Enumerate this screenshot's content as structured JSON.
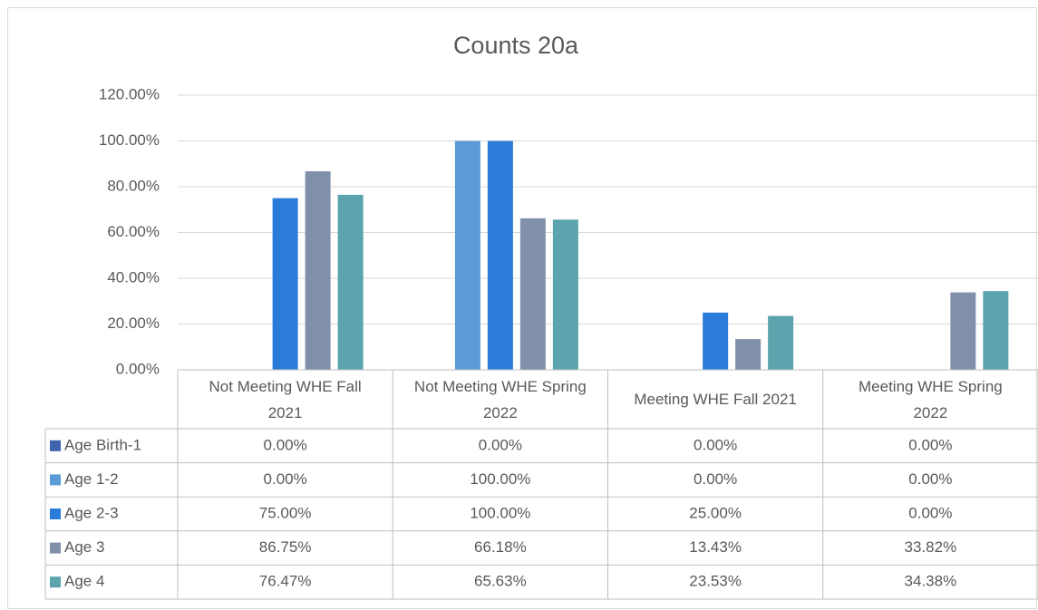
{
  "chart_data": {
    "type": "bar",
    "title": "Counts 20a",
    "categories": [
      "Not Meeting WHE Fall 2021",
      "Not Meeting WHE Spring 2022",
      "Meeting WHE Fall 2021",
      "Meeting WHE Spring 2022"
    ],
    "series": [
      {
        "name": "Age Birth-1",
        "color": "#4063ad",
        "values": [
          0,
          0,
          0,
          0
        ],
        "value_labels": [
          "0.00%",
          "0.00%",
          "0.00%",
          "0.00%"
        ]
      },
      {
        "name": "Age 1-2",
        "color": "#5b9bd5",
        "values": [
          0,
          100,
          0,
          0
        ],
        "value_labels": [
          "0.00%",
          "100.00%",
          "0.00%",
          "0.00%"
        ]
      },
      {
        "name": "Age 2-3",
        "color": "#2b7cd9",
        "values": [
          75,
          100,
          25,
          0
        ],
        "value_labels": [
          "75.00%",
          "100.00%",
          "25.00%",
          "0.00%"
        ]
      },
      {
        "name": "Age 3",
        "color": "#8090aa",
        "values": [
          86.75,
          66.18,
          13.43,
          33.82
        ],
        "value_labels": [
          "86.75%",
          "66.18%",
          "13.43%",
          "33.82%"
        ]
      },
      {
        "name": "Age 4",
        "color": "#5ba3ad",
        "values": [
          76.47,
          65.63,
          23.53,
          34.38
        ],
        "value_labels": [
          "76.47%",
          "65.63%",
          "23.53%",
          "34.38%"
        ]
      }
    ],
    "ylim": [
      0,
      120
    ],
    "yticks": [
      {
        "value": 0,
        "label": "0.00%"
      },
      {
        "value": 20,
        "label": "20.00%"
      },
      {
        "value": 40,
        "label": "40.00%"
      },
      {
        "value": 60,
        "label": "60.00%"
      },
      {
        "value": 80,
        "label": "80.00%"
      },
      {
        "value": 100,
        "label": "100.00%"
      },
      {
        "value": 120,
        "label": "120.00%"
      }
    ],
    "grid": true,
    "legend": "table"
  }
}
